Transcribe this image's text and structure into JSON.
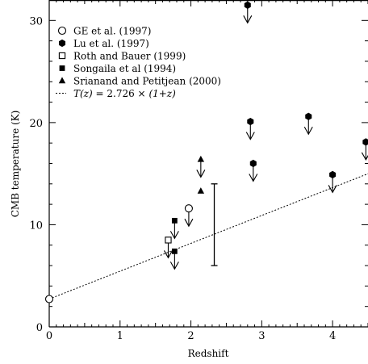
{
  "chart_data": {
    "type": "scatter",
    "xlabel": "Redshift",
    "ylabel": "CMB temperature (K)",
    "xlim": [
      0,
      4.5
    ],
    "ylim": [
      0,
      32
    ],
    "x_ticks": [
      0,
      1,
      2,
      3,
      4
    ],
    "y_ticks": [
      0,
      10,
      20,
      30
    ],
    "grid": false,
    "legend_position": "top-left",
    "legend": [
      {
        "label": "GE et al. (1997)",
        "marker": "open-circle"
      },
      {
        "label": "Lu et al. (1997)",
        "marker": "filled-hexagon"
      },
      {
        "label": "Roth and Bauer (1999)",
        "marker": "open-square"
      },
      {
        "label": "Songaila et al (1994)",
        "marker": "filled-square"
      },
      {
        "label": "Srianand and Petitjean (2000)",
        "marker": "filled-triangle"
      },
      {
        "label_parts": [
          "T(z)",
          " = 2.726 × ",
          "(1+z)"
        ],
        "marker": "dotted-line"
      }
    ],
    "series": [
      {
        "marker": "open-circle",
        "points": [
          {
            "x": 0.0,
            "y": 2.726,
            "upper_limit": false
          },
          {
            "x": 1.97,
            "y": 11.6,
            "upper_limit": true
          }
        ]
      },
      {
        "marker": "filled-hexagon",
        "points": [
          {
            "x": 2.8,
            "y": 31.5,
            "upper_limit": true
          },
          {
            "x": 2.84,
            "y": 20.1,
            "upper_limit": true
          },
          {
            "x": 2.88,
            "y": 16.0,
            "upper_limit": true
          },
          {
            "x": 3.66,
            "y": 20.6,
            "upper_limit": true
          },
          {
            "x": 4.0,
            "y": 14.9,
            "upper_limit": true
          },
          {
            "x": 4.47,
            "y": 18.1,
            "upper_limit": true
          }
        ]
      },
      {
        "marker": "open-square",
        "points": [
          {
            "x": 1.68,
            "y": 8.5,
            "upper_limit": true
          }
        ]
      },
      {
        "marker": "filled-square",
        "points": [
          {
            "x": 1.77,
            "y": 10.4,
            "upper_limit": true
          },
          {
            "x": 1.77,
            "y": 7.4,
            "upper_limit": true
          }
        ]
      },
      {
        "marker": "filled-triangle",
        "points": [
          {
            "x": 2.14,
            "y": 16.4,
            "upper_limit": true
          },
          {
            "x": 2.14,
            "y": 13.3,
            "upper_limit": false
          }
        ]
      }
    ],
    "error_bars": [
      {
        "x": 2.33,
        "y_low": 6.0,
        "y_high": 14.0
      }
    ],
    "model_line": {
      "formula": "T(z) = 2.726 × (1+z)",
      "t0": 2.726,
      "style": "dotted"
    }
  }
}
